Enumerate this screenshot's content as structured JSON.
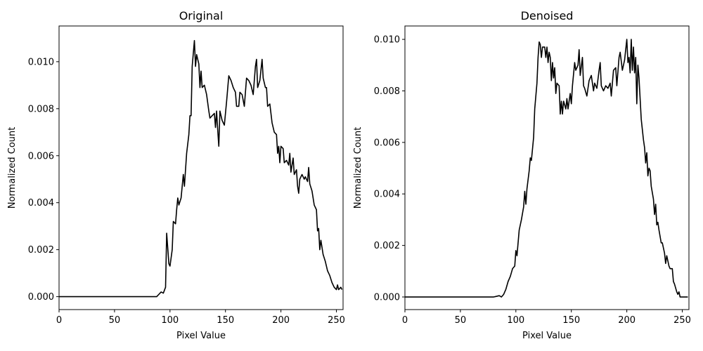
{
  "chart_data": [
    {
      "type": "line",
      "title": "Original",
      "x_label": "Pixel Value",
      "y_label": "Normalized Count",
      "color": "#000000",
      "xlim": [
        0,
        256
      ],
      "ylim": [
        -0.00055,
        0.01152
      ],
      "xticks": [
        0,
        50,
        100,
        150,
        200,
        250
      ],
      "yticks": [
        {
          "value": 0,
          "label": "0.000"
        },
        {
          "value": 0.002,
          "label": "0.002"
        },
        {
          "value": 0.004,
          "label": "0.004"
        },
        {
          "value": 0.006,
          "label": "0.006"
        },
        {
          "value": 0.008,
          "label": "0.008"
        },
        {
          "value": 0.01,
          "label": "0.010"
        }
      ],
      "x": [
        0,
        88,
        90,
        92,
        94,
        96,
        97,
        99,
        100,
        102,
        103,
        105,
        106,
        107,
        108,
        110,
        112,
        113,
        115,
        117,
        118,
        119,
        120,
        122,
        123,
        124,
        126,
        127,
        128,
        129,
        131,
        133,
        135,
        136,
        138,
        140,
        141,
        142,
        143,
        144,
        145,
        147,
        149,
        151,
        153,
        155,
        157,
        159,
        160,
        162,
        163,
        165,
        167,
        169,
        171,
        173,
        175,
        177,
        178,
        179,
        181,
        183,
        184,
        186,
        187,
        188,
        190,
        192,
        194,
        196,
        197,
        198,
        199,
        200,
        202,
        203,
        205,
        207,
        208,
        209,
        211,
        212,
        214,
        215,
        216,
        217,
        219,
        221,
        222,
        224,
        225,
        226,
        228,
        230,
        232,
        233,
        234,
        235,
        236,
        238,
        240,
        242,
        244,
        246,
        248,
        250,
        251,
        252,
        254,
        255
      ],
      "values": [
        0,
        0,
        0.0001,
        0.0002,
        0.00015,
        0.0004,
        0.0027,
        0.0014,
        0.0013,
        0.002,
        0.0032,
        0.0031,
        0.0037,
        0.0042,
        0.0039,
        0.0042,
        0.0052,
        0.0047,
        0.0061,
        0.0069,
        0.0077,
        0.0077,
        0.0098,
        0.0109,
        0.0098,
        0.0103,
        0.0099,
        0.0089,
        0.0096,
        0.0089,
        0.009,
        0.0086,
        0.0079,
        0.0076,
        0.0077,
        0.0078,
        0.0072,
        0.0079,
        0.0071,
        0.0064,
        0.0079,
        0.0075,
        0.0073,
        0.0083,
        0.0094,
        0.0092,
        0.0089,
        0.0087,
        0.0081,
        0.0081,
        0.0087,
        0.0086,
        0.0081,
        0.0093,
        0.0092,
        0.009,
        0.0086,
        0.0098,
        0.0101,
        0.0089,
        0.0092,
        0.0101,
        0.0093,
        0.0089,
        0.0089,
        0.0081,
        0.0082,
        0.0074,
        0.007,
        0.0069,
        0.0061,
        0.0064,
        0.0057,
        0.0064,
        0.0063,
        0.0057,
        0.0058,
        0.0056,
        0.0061,
        0.0053,
        0.0059,
        0.0052,
        0.0054,
        0.0047,
        0.0044,
        0.005,
        0.0052,
        0.005,
        0.0051,
        0.0049,
        0.0055,
        0.0048,
        0.0045,
        0.0039,
        0.0037,
        0.0028,
        0.0029,
        0.002,
        0.0024,
        0.0018,
        0.0015,
        0.0011,
        0.0009,
        0.0006,
        0.0004,
        0.0003,
        0.0005,
        0.0003,
        0.0004,
        0.0003
      ]
    },
    {
      "type": "line",
      "title": "Denoised",
      "x_label": "Pixel Value",
      "y_label": "Normalized Count",
      "color": "#000000",
      "xlim": [
        0,
        256
      ],
      "ylim": [
        -0.00049,
        0.01052
      ],
      "xticks": [
        0,
        50,
        100,
        150,
        200,
        250
      ],
      "yticks": [
        {
          "value": 0,
          "label": "0.000"
        },
        {
          "value": 0.002,
          "label": "0.002"
        },
        {
          "value": 0.004,
          "label": "0.004"
        },
        {
          "value": 0.006,
          "label": "0.006"
        },
        {
          "value": 0.008,
          "label": "0.008"
        },
        {
          "value": 0.01,
          "label": "0.010"
        }
      ],
      "x": [
        0,
        80,
        82,
        85,
        87,
        89,
        91,
        93,
        95,
        97,
        99,
        100,
        101,
        103,
        105,
        107,
        108,
        109,
        110,
        112,
        113,
        114,
        116,
        117,
        119,
        120,
        121,
        122,
        123,
        124,
        126,
        127,
        128,
        129,
        130,
        131,
        132,
        133,
        134,
        135,
        136,
        137,
        139,
        140,
        141,
        142,
        143,
        145,
        146,
        147,
        149,
        150,
        151,
        153,
        154,
        156,
        157,
        158,
        160,
        161,
        162,
        164,
        166,
        168,
        170,
        171,
        173,
        175,
        176,
        177,
        179,
        181,
        183,
        185,
        186,
        188,
        190,
        191,
        193,
        194,
        196,
        198,
        199,
        200,
        201,
        202,
        203,
        204,
        205,
        206,
        207,
        208,
        209,
        210,
        211,
        213,
        214,
        215,
        216,
        217,
        218,
        219,
        220,
        221,
        222,
        224,
        225,
        226,
        227,
        228,
        229,
        231,
        232,
        234,
        235,
        236,
        238,
        239,
        241,
        242,
        243,
        245,
        246,
        247,
        248,
        250,
        255
      ],
      "values": [
        0,
        0,
        2e-05,
        5e-05,
        0,
        0.0001,
        0.0003,
        0.0006,
        0.0008,
        0.0011,
        0.0012,
        0.0018,
        0.0016,
        0.0026,
        0.003,
        0.0035,
        0.0041,
        0.0036,
        0.0042,
        0.0049,
        0.0054,
        0.0053,
        0.0062,
        0.0073,
        0.0083,
        0.0093,
        0.0099,
        0.0098,
        0.0093,
        0.0097,
        0.0097,
        0.0093,
        0.0097,
        0.0091,
        0.0095,
        0.0093,
        0.0084,
        0.0091,
        0.0085,
        0.0089,
        0.0079,
        0.0083,
        0.0082,
        0.0071,
        0.0076,
        0.0071,
        0.0076,
        0.0073,
        0.0077,
        0.0073,
        0.0079,
        0.0075,
        0.0082,
        0.0091,
        0.0088,
        0.009,
        0.0096,
        0.0086,
        0.0093,
        0.0082,
        0.0081,
        0.0078,
        0.0084,
        0.0086,
        0.008,
        0.0083,
        0.0081,
        0.0088,
        0.0091,
        0.0082,
        0.008,
        0.0082,
        0.0081,
        0.0083,
        0.0078,
        0.0088,
        0.0089,
        0.0082,
        0.0093,
        0.0095,
        0.0088,
        0.0092,
        0.0096,
        0.01,
        0.0091,
        0.0093,
        0.0087,
        0.01,
        0.0088,
        0.0097,
        0.0087,
        0.0093,
        0.0075,
        0.009,
        0.0085,
        0.0069,
        0.0065,
        0.0061,
        0.0058,
        0.0052,
        0.0056,
        0.0047,
        0.005,
        0.0049,
        0.0043,
        0.0038,
        0.0032,
        0.0036,
        0.0028,
        0.0029,
        0.0026,
        0.0021,
        0.0021,
        0.0017,
        0.0013,
        0.0016,
        0.0012,
        0.0011,
        0.0011,
        0.0006,
        0.0005,
        0.0002,
        0.0001,
        0.0002,
        0,
        0,
        0
      ]
    }
  ]
}
